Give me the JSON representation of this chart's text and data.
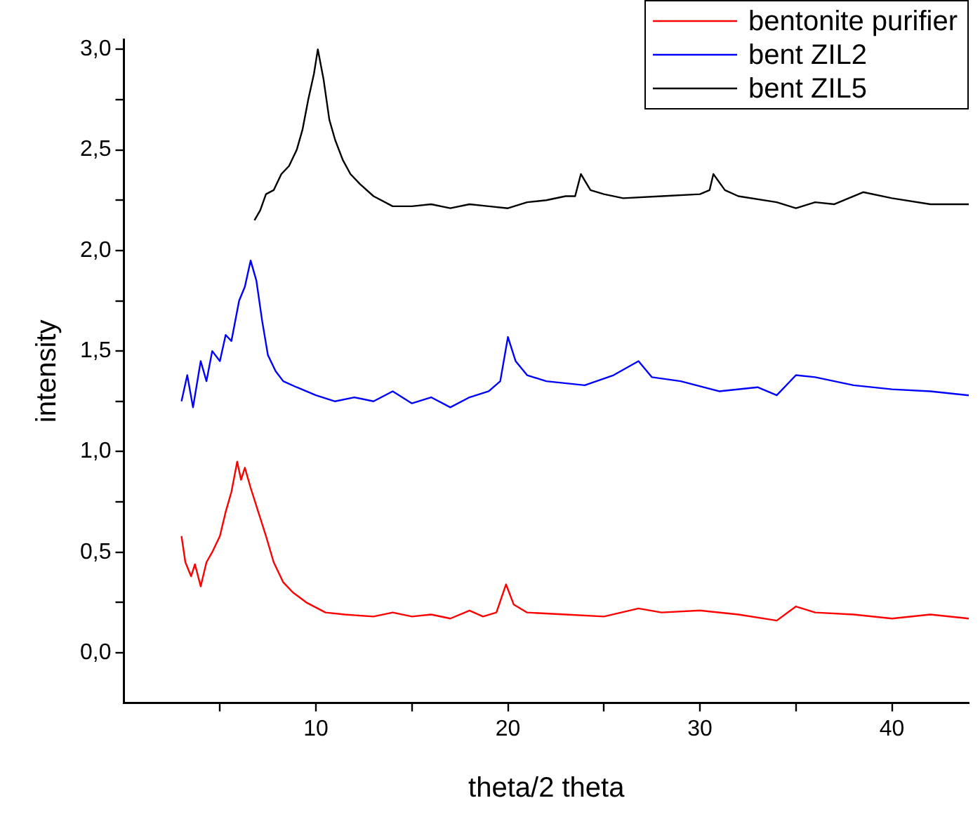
{
  "chart_data": {
    "type": "line",
    "xlabel": "theta/2 theta",
    "ylabel": "intensity",
    "xlim": [
      0,
      44
    ],
    "ylim": [
      -0.25,
      3.05
    ],
    "xticks": [
      {
        "value": 5,
        "label": null
      },
      10,
      {
        "value": 15,
        "label": null
      },
      20,
      {
        "value": 25,
        "label": null
      },
      30,
      {
        "value": 35,
        "label": null
      },
      40
    ],
    "yticks": [
      {
        "value": 0,
        "label": "0,0"
      },
      {
        "value": 0.25,
        "label": null
      },
      {
        "value": 0.5,
        "label": "0,5"
      },
      {
        "value": 0.75,
        "label": null
      },
      {
        "value": 1,
        "label": "1,0"
      },
      {
        "value": 1.25,
        "label": null
      },
      {
        "value": 1.5,
        "label": "1,5"
      },
      {
        "value": 1.75,
        "label": null
      },
      {
        "value": 2,
        "label": "2,0"
      },
      {
        "value": 2.25,
        "label": null
      },
      {
        "value": 2.5,
        "label": "2,5"
      },
      {
        "value": 2.75,
        "label": null
      },
      {
        "value": 3,
        "label": "3,0"
      }
    ],
    "grid": false,
    "legend": "top right",
    "marker": "none",
    "line_style": "solid",
    "series": [
      {
        "name": "bentonite purifier",
        "color": "#ff0000",
        "x": [
          3,
          3.2,
          3.5,
          3.7,
          4,
          4.3,
          4.6,
          5,
          5.3,
          5.6,
          5.9,
          6.1,
          6.3,
          6.6,
          7,
          7.4,
          7.8,
          8.3,
          8.8,
          9.5,
          10.5,
          11.5,
          13,
          14,
          15,
          16,
          17,
          18,
          18.7,
          19.4,
          19.9,
          20.3,
          21,
          23,
          25,
          26.8,
          28,
          30,
          32,
          34,
          35,
          36,
          38,
          40,
          42,
          44
        ],
        "values": [
          0.58,
          0.45,
          0.38,
          0.44,
          0.33,
          0.45,
          0.5,
          0.58,
          0.7,
          0.8,
          0.95,
          0.86,
          0.92,
          0.82,
          0.7,
          0.58,
          0.45,
          0.35,
          0.3,
          0.25,
          0.2,
          0.19,
          0.18,
          0.2,
          0.18,
          0.19,
          0.17,
          0.21,
          0.18,
          0.2,
          0.34,
          0.24,
          0.2,
          0.19,
          0.18,
          0.22,
          0.2,
          0.21,
          0.19,
          0.16,
          0.23,
          0.2,
          0.19,
          0.17,
          0.19,
          0.17
        ]
      },
      {
        "name": "bent ZIL2",
        "color": "#0000ff",
        "x": [
          3,
          3.3,
          3.6,
          4,
          4.3,
          4.6,
          5,
          5.3,
          5.6,
          6,
          6.3,
          6.6,
          6.9,
          7.2,
          7.5,
          7.9,
          8.3,
          9,
          10,
          11,
          12,
          13,
          14,
          15,
          16,
          17,
          18,
          19,
          19.6,
          20,
          20.4,
          21,
          22,
          24,
          25.5,
          26.8,
          27.5,
          29,
          31,
          33,
          34,
          35,
          36,
          38,
          40,
          42,
          44
        ],
        "values": [
          1.25,
          1.38,
          1.22,
          1.45,
          1.35,
          1.5,
          1.45,
          1.58,
          1.55,
          1.75,
          1.82,
          1.95,
          1.85,
          1.65,
          1.48,
          1.4,
          1.35,
          1.32,
          1.28,
          1.25,
          1.27,
          1.25,
          1.3,
          1.24,
          1.27,
          1.22,
          1.27,
          1.3,
          1.35,
          1.57,
          1.45,
          1.38,
          1.35,
          1.33,
          1.38,
          1.45,
          1.37,
          1.35,
          1.3,
          1.32,
          1.28,
          1.38,
          1.37,
          1.33,
          1.31,
          1.3,
          1.28
        ]
      },
      {
        "name": "bent ZIL5",
        "color": "#000000",
        "x": [
          6.8,
          7.1,
          7.4,
          7.8,
          8.2,
          8.6,
          9,
          9.3,
          9.6,
          9.9,
          10.1,
          10.4,
          10.7,
          11,
          11.4,
          11.8,
          12.3,
          13,
          14,
          15,
          16,
          17,
          18,
          19,
          20,
          21,
          22,
          23,
          23.5,
          23.8,
          24.3,
          25,
          26,
          28,
          30,
          30.5,
          30.7,
          31.3,
          32,
          34,
          35,
          36,
          37,
          38.5,
          40,
          42,
          44
        ],
        "values": [
          2.15,
          2.2,
          2.28,
          2.3,
          2.38,
          2.42,
          2.5,
          2.6,
          2.75,
          2.88,
          3.0,
          2.85,
          2.65,
          2.55,
          2.45,
          2.38,
          2.33,
          2.27,
          2.22,
          2.22,
          2.23,
          2.21,
          2.23,
          2.22,
          2.21,
          2.24,
          2.25,
          2.27,
          2.27,
          2.38,
          2.3,
          2.28,
          2.26,
          2.27,
          2.28,
          2.3,
          2.38,
          2.3,
          2.27,
          2.24,
          2.21,
          2.24,
          2.23,
          2.29,
          2.26,
          2.23,
          2.23
        ]
      }
    ]
  }
}
